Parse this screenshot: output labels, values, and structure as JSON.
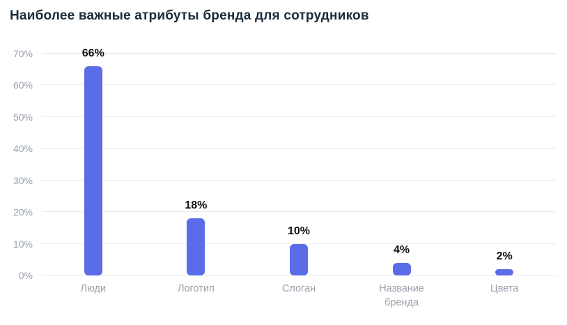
{
  "title": "Наиболее важные атрибуты бренда для сотрудников",
  "chart_data": {
    "type": "bar",
    "title": "Наиболее важные атрибуты бренда для сотрудников",
    "categories": [
      "Люди",
      "Логотип",
      "Слоган",
      "Название бренда",
      "Цвета"
    ],
    "values": [
      66,
      18,
      10,
      4,
      2
    ],
    "value_labels": [
      "66%",
      "18%",
      "10%",
      "4%",
      "2%"
    ],
    "xlabel": "",
    "ylabel": "",
    "ylim": [
      0,
      70
    ],
    "yticks": [
      0,
      10,
      20,
      30,
      40,
      50,
      60,
      70
    ],
    "ytick_labels": [
      "0%",
      "10%",
      "20%",
      "30%",
      "40%",
      "50%",
      "60%",
      "70%"
    ],
    "grid": true,
    "legend": false,
    "bar_color": "#5b6ce8"
  },
  "colors": {
    "title": "#1a2b3c",
    "axis_label": "#98a0ab",
    "gridline": "#e7e9ec",
    "value_label": "#101113",
    "background": "#ffffff"
  }
}
